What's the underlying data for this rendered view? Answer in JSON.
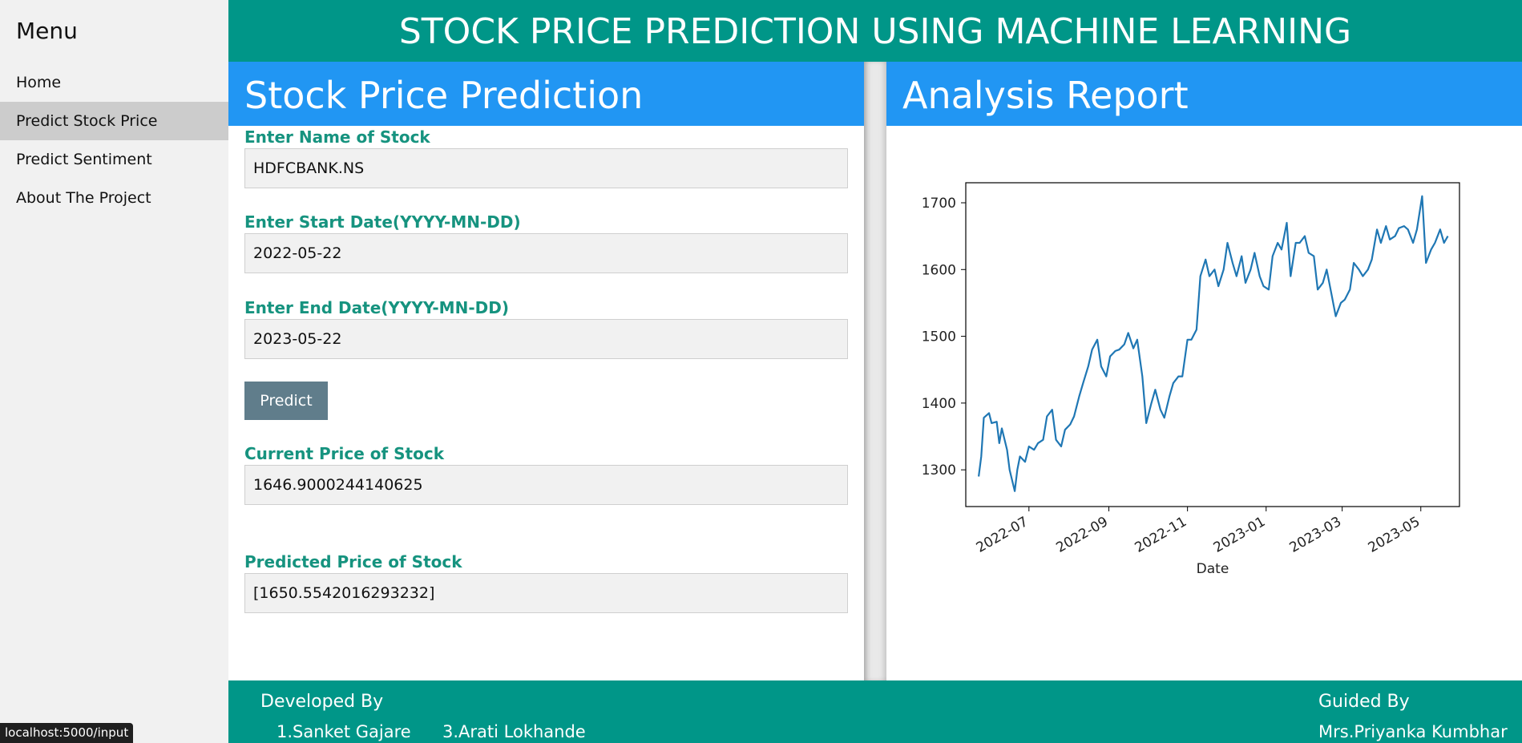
{
  "sidebar": {
    "title": "Menu",
    "items": [
      {
        "label": "Home"
      },
      {
        "label": "Predict Stock Price"
      },
      {
        "label": "Predict Sentiment"
      },
      {
        "label": "About The Project"
      }
    ]
  },
  "header": {
    "title": "STOCK PRICE PREDICTION USING MACHINE LEARNING"
  },
  "prediction_panel": {
    "title": "Stock Price Prediction",
    "stock_label": "Enter Name of Stock",
    "stock_value": "HDFCBANK.NS",
    "start_label": "Enter Start Date(YYYY-MN-DD)",
    "start_value": "2022-05-22",
    "end_label": "Enter End Date(YYYY-MN-DD)",
    "end_value": "2023-05-22",
    "predict_button": "Predict",
    "current_label": "Current Price of Stock",
    "current_value": "1646.9000244140625",
    "predicted_label": "Predicted Price of Stock",
    "predicted_value": "[1650.5542016293232]"
  },
  "analysis_panel": {
    "title": "Analysis Report"
  },
  "chart_data": {
    "type": "line",
    "xlabel": "Date",
    "ylabel": "",
    "title": "",
    "xlim": [
      "2022-05-13",
      "2023-05-31"
    ],
    "ylim": [
      1245,
      1730
    ],
    "yticks": [
      1300,
      1400,
      1500,
      1600,
      1700
    ],
    "xticks": [
      "2022-07",
      "2022-09",
      "2022-11",
      "2023-01",
      "2023-03",
      "2023-05"
    ],
    "color": "#1f77b4",
    "series": [
      {
        "x": [
          "2022-05-23",
          "2022-05-25",
          "2022-05-27",
          "2022-05-31",
          "2022-06-02",
          "2022-06-06",
          "2022-06-08",
          "2022-06-10",
          "2022-06-14",
          "2022-06-16",
          "2022-06-20",
          "2022-06-22",
          "2022-06-24",
          "2022-06-28",
          "2022-07-01",
          "2022-07-05",
          "2022-07-08",
          "2022-07-12",
          "2022-07-15",
          "2022-07-19",
          "2022-07-22",
          "2022-07-26",
          "2022-07-29",
          "2022-08-02",
          "2022-08-05",
          "2022-08-09",
          "2022-08-12",
          "2022-08-16",
          "2022-08-19",
          "2022-08-23",
          "2022-08-26",
          "2022-08-30",
          "2022-09-02",
          "2022-09-06",
          "2022-09-09",
          "2022-09-13",
          "2022-09-16",
          "2022-09-20",
          "2022-09-23",
          "2022-09-27",
          "2022-09-30",
          "2022-10-04",
          "2022-10-07",
          "2022-10-11",
          "2022-10-14",
          "2022-10-18",
          "2022-10-21",
          "2022-10-25",
          "2022-10-28",
          "2022-11-01",
          "2022-11-04",
          "2022-11-08",
          "2022-11-11",
          "2022-11-15",
          "2022-11-18",
          "2022-11-22",
          "2022-11-25",
          "2022-11-29",
          "2022-12-02",
          "2022-12-06",
          "2022-12-09",
          "2022-12-13",
          "2022-12-16",
          "2022-12-20",
          "2022-12-23",
          "2022-12-27",
          "2022-12-30",
          "2023-01-03",
          "2023-01-06",
          "2023-01-10",
          "2023-01-13",
          "2023-01-17",
          "2023-01-20",
          "2023-01-24",
          "2023-01-27",
          "2023-01-31",
          "2023-02-03",
          "2023-02-07",
          "2023-02-10",
          "2023-02-14",
          "2023-02-17",
          "2023-02-21",
          "2023-02-24",
          "2023-02-28",
          "2023-03-03",
          "2023-03-07",
          "2023-03-10",
          "2023-03-14",
          "2023-03-17",
          "2023-03-21",
          "2023-03-24",
          "2023-03-28",
          "2023-03-31",
          "2023-04-04",
          "2023-04-07",
          "2023-04-11",
          "2023-04-14",
          "2023-04-18",
          "2023-04-21",
          "2023-04-25",
          "2023-04-28",
          "2023-05-02",
          "2023-05-05",
          "2023-05-09",
          "2023-05-12",
          "2023-05-16",
          "2023-05-19",
          "2023-05-22"
        ],
        "y": [
          1290,
          1320,
          1378,
          1385,
          1370,
          1372,
          1340,
          1362,
          1330,
          1300,
          1268,
          1300,
          1320,
          1312,
          1335,
          1330,
          1340,
          1345,
          1380,
          1390,
          1345,
          1335,
          1360,
          1368,
          1380,
          1410,
          1430,
          1455,
          1480,
          1495,
          1455,
          1440,
          1470,
          1478,
          1480,
          1488,
          1505,
          1482,
          1495,
          1440,
          1370,
          1400,
          1420,
          1390,
          1378,
          1410,
          1430,
          1440,
          1440,
          1495,
          1495,
          1510,
          1590,
          1615,
          1590,
          1600,
          1575,
          1600,
          1640,
          1610,
          1590,
          1620,
          1580,
          1600,
          1625,
          1590,
          1575,
          1570,
          1620,
          1640,
          1630,
          1670,
          1590,
          1640,
          1640,
          1650,
          1625,
          1620,
          1570,
          1580,
          1600,
          1560,
          1530,
          1550,
          1555,
          1570,
          1610,
          1600,
          1590,
          1600,
          1615,
          1660,
          1640,
          1665,
          1645,
          1650,
          1662,
          1665,
          1660,
          1640,
          1660,
          1710,
          1610,
          1630,
          1640,
          1660,
          1640,
          1650
        ]
      }
    ]
  },
  "footer": {
    "developed_by": "Developed By",
    "dev1": "1.Sanket Gajare",
    "dev3": "3.Arati Lokhande",
    "guided_by": "Guided By",
    "guide": "Mrs.Priyanka Kumbhar"
  },
  "status": {
    "url": "localhost:5000/input"
  }
}
